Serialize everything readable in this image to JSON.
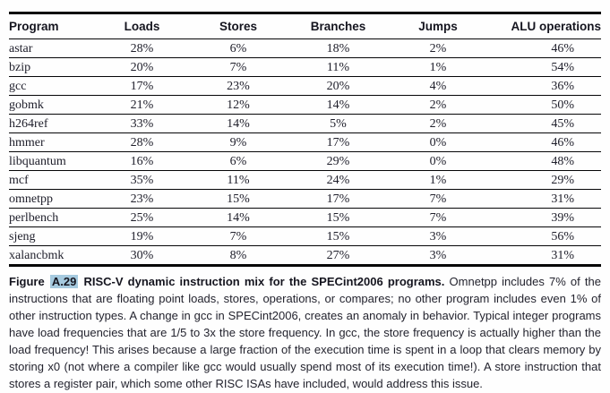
{
  "table": {
    "columns": [
      "Program",
      "Loads",
      "Stores",
      "Branches",
      "Jumps",
      "ALU operations"
    ],
    "rows": [
      {
        "program": "astar",
        "values": [
          "28%",
          "6%",
          "18%",
          "2%",
          "46%"
        ]
      },
      {
        "program": "bzip",
        "values": [
          "20%",
          "7%",
          "11%",
          "1%",
          "54%"
        ]
      },
      {
        "program": "gcc",
        "values": [
          "17%",
          "23%",
          "20%",
          "4%",
          "36%"
        ]
      },
      {
        "program": "gobmk",
        "values": [
          "21%",
          "12%",
          "14%",
          "2%",
          "50%"
        ]
      },
      {
        "program": "h264ref",
        "values": [
          "33%",
          "14%",
          "5%",
          "2%",
          "45%"
        ]
      },
      {
        "program": "hmmer",
        "values": [
          "28%",
          "9%",
          "17%",
          "0%",
          "46%"
        ]
      },
      {
        "program": "libquantum",
        "values": [
          "16%",
          "6%",
          "29%",
          "0%",
          "48%"
        ]
      },
      {
        "program": "mcf",
        "values": [
          "35%",
          "11%",
          "24%",
          "1%",
          "29%"
        ]
      },
      {
        "program": "omnetpp",
        "values": [
          "23%",
          "15%",
          "17%",
          "7%",
          "31%"
        ]
      },
      {
        "program": "perlbench",
        "values": [
          "25%",
          "14%",
          "15%",
          "7%",
          "39%"
        ]
      },
      {
        "program": "sjeng",
        "values": [
          "19%",
          "7%",
          "15%",
          "3%",
          "56%"
        ]
      },
      {
        "program": "xalancbmk",
        "values": [
          "30%",
          "8%",
          "27%",
          "3%",
          "31%"
        ]
      }
    ]
  },
  "caption": {
    "figure_word": "Figure",
    "figure_number": "A.29",
    "title": "RISC-V dynamic instruction mix for the SPECint2006 programs.",
    "body": "Omnetpp includes 7% of the instructions that are floating point loads, stores, operations, or compares; no other program includes even 1% of other instruction types. A change in gcc in SPECint2006, creates an anomaly in behavior. Typical integer programs have load frequencies that are 1/5 to 3x the store frequency. In gcc, the store frequency is actually higher than the load frequency! This arises because a large fraction of the execution time is spent in a loop that clears memory by storing x0 (not where a compiler like gcc would usually spend most of its execution time!). A store instruction that stores a register pair, which some other RISC ISAs have included, would address this issue.",
    "highlight_color": "#a6cadf"
  },
  "chart_data": {
    "type": "table",
    "title": "RISC-V dynamic instruction mix for the SPECint2006 programs",
    "columns": [
      "Program",
      "Loads",
      "Stores",
      "Branches",
      "Jumps",
      "ALU operations"
    ],
    "rows": [
      [
        "astar",
        "28%",
        "6%",
        "18%",
        "2%",
        "46%"
      ],
      [
        "bzip",
        "20%",
        "7%",
        "11%",
        "1%",
        "54%"
      ],
      [
        "gcc",
        "17%",
        "23%",
        "20%",
        "4%",
        "36%"
      ],
      [
        "gobmk",
        "21%",
        "12%",
        "14%",
        "2%",
        "50%"
      ],
      [
        "h264ref",
        "33%",
        "14%",
        "5%",
        "2%",
        "45%"
      ],
      [
        "hmmer",
        "28%",
        "9%",
        "17%",
        "0%",
        "46%"
      ],
      [
        "libquantum",
        "16%",
        "6%",
        "29%",
        "0%",
        "48%"
      ],
      [
        "mcf",
        "35%",
        "11%",
        "24%",
        "1%",
        "29%"
      ],
      [
        "omnetpp",
        "23%",
        "15%",
        "17%",
        "7%",
        "31%"
      ],
      [
        "perlbench",
        "25%",
        "14%",
        "15%",
        "7%",
        "39%"
      ],
      [
        "sjeng",
        "19%",
        "7%",
        "15%",
        "3%",
        "56%"
      ],
      [
        "xalancbmk",
        "30%",
        "8%",
        "27%",
        "3%",
        "31%"
      ]
    ]
  }
}
